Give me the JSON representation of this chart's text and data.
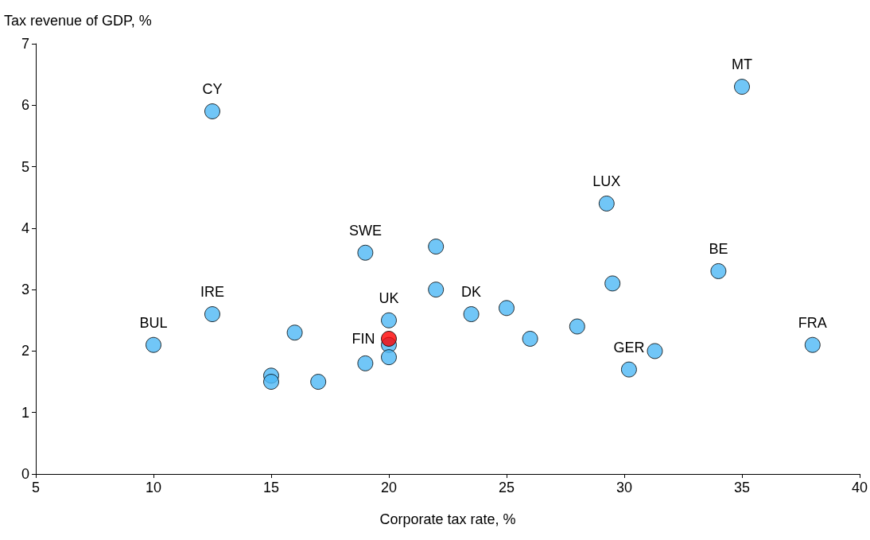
{
  "chart_data": {
    "type": "scatter",
    "xlabel": "Corporate tax rate, %",
    "ylabel": "Tax revenue of GDP, %",
    "x": [
      10,
      12.5,
      12.5,
      16,
      15,
      15,
      17,
      19,
      19,
      20,
      20,
      20,
      20,
      22,
      22,
      23.5,
      25,
      26,
      28,
      29.25,
      29.5,
      30.2,
      31.3,
      34,
      35,
      38
    ],
    "series": [
      {
        "values": [
          2.1,
          5.9,
          2.6,
          2.3,
          1.6,
          1.5,
          1.5,
          3.6,
          1.8,
          2.5,
          2.1,
          1.9,
          2.2,
          3.7,
          3.0,
          2.6,
          2.7,
          2.2,
          2.4,
          4.4,
          3.1,
          1.7,
          2.0,
          3.3,
          6.3,
          2.1
        ],
        "colors": [
          "#4db8f5",
          "#4db8f5",
          "#4db8f5",
          "#4db8f5",
          "#4db8f5",
          "#4db8f5",
          "#4db8f5",
          "#4db8f5",
          "#4db8f5",
          "#4db8f5",
          "#4db8f5",
          "#4db8f5",
          "#ff0000",
          "#4db8f5",
          "#4db8f5",
          "#4db8f5",
          "#4db8f5",
          "#4db8f5",
          "#4db8f5",
          "#4db8f5",
          "#4db8f5",
          "#4db8f5",
          "#4db8f5",
          "#4db8f5",
          "#4db8f5",
          "#4db8f5"
        ]
      }
    ],
    "annotations": [
      {
        "text": "BUL",
        "x": 10,
        "y": 2.1
      },
      {
        "text": "CY",
        "x": 12.5,
        "y": 5.9
      },
      {
        "text": "IRE",
        "x": 12.5,
        "y": 2.6
      },
      {
        "text": "SWE",
        "x": 19,
        "y": 3.6
      },
      {
        "text": "UK",
        "x": 20,
        "y": 2.5
      },
      {
        "text": "FIN",
        "x": 20,
        "y": 2.2
      },
      {
        "text": "DK",
        "x": 23.5,
        "y": 2.6
      },
      {
        "text": "LUX",
        "x": 29.25,
        "y": 4.4
      },
      {
        "text": "GER",
        "x": 30.2,
        "y": 1.7
      },
      {
        "text": "BE",
        "x": 34,
        "y": 3.3
      },
      {
        "text": "MT",
        "x": 35,
        "y": 6.3
      },
      {
        "text": "FRA",
        "x": 38,
        "y": 2.1
      }
    ],
    "xlim": [
      5,
      40
    ],
    "xticks": [
      5,
      10,
      15,
      20,
      25,
      30,
      35,
      40
    ],
    "ylim": [
      0,
      7
    ],
    "yticks": [
      0,
      1,
      2,
      3,
      4,
      5,
      6,
      7
    ],
    "marker": "circle",
    "grid": false
  }
}
